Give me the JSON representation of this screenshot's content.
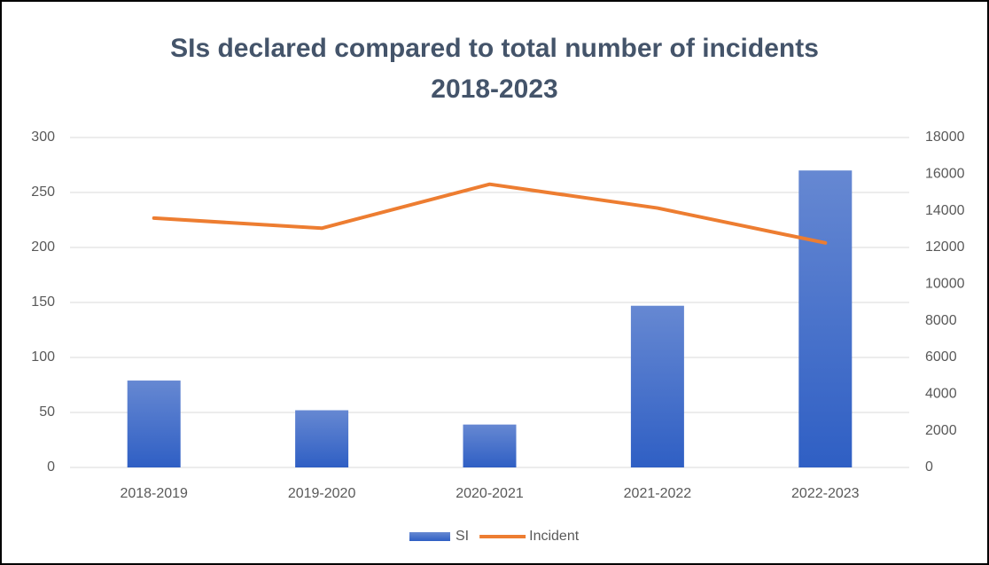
{
  "chart_data": {
    "type": "bar-line",
    "title": [
      "SIs declared compared to total number of incidents",
      "2018-2023"
    ],
    "categories": [
      "2018-2019",
      "2019-2020",
      "2020-2021",
      "2021-2022",
      "2022-2023"
    ],
    "series": [
      {
        "name": "SI",
        "type": "bar",
        "color": "#4472c4",
        "values": [
          79,
          52,
          39,
          147,
          270
        ]
      },
      {
        "name": "Incident",
        "type": "line",
        "axis": "y2",
        "color": "#ed7d31",
        "values": [
          13600,
          13050,
          15450,
          14150,
          12250
        ]
      }
    ],
    "ylim": [
      0,
      300
    ],
    "yticks": [
      0,
      50,
      100,
      150,
      200,
      250,
      300
    ],
    "y2lim": [
      0,
      18000
    ],
    "y2ticks": [
      0,
      2000,
      4000,
      6000,
      8000,
      10000,
      12000,
      14000,
      16000,
      18000
    ],
    "grid": true,
    "legend": "bottom"
  }
}
